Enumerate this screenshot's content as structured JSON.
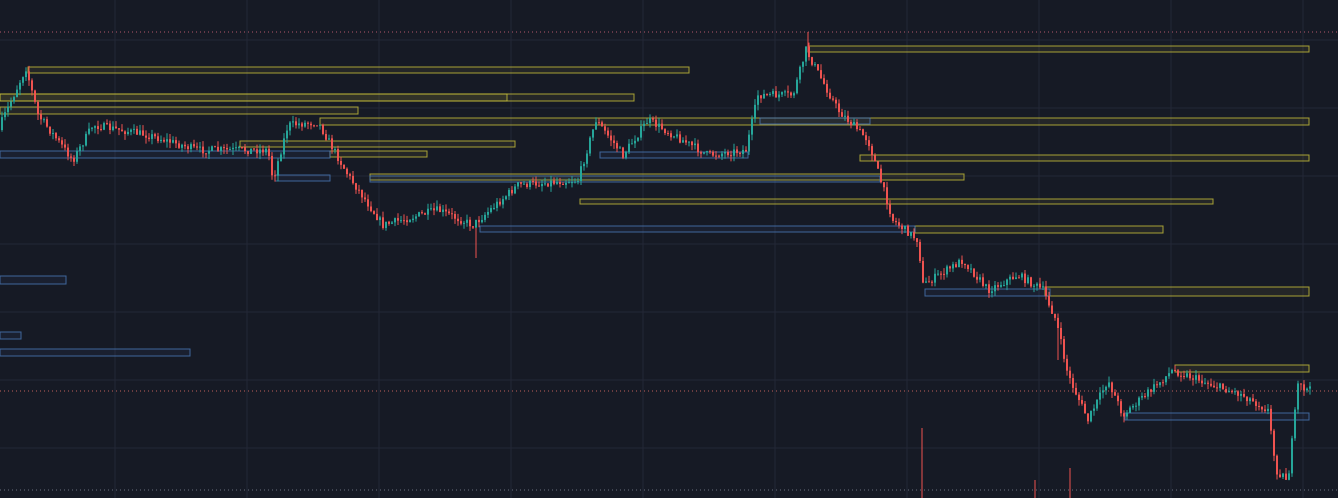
{
  "chart": {
    "type": "candlestick",
    "grid": true
  }
}
